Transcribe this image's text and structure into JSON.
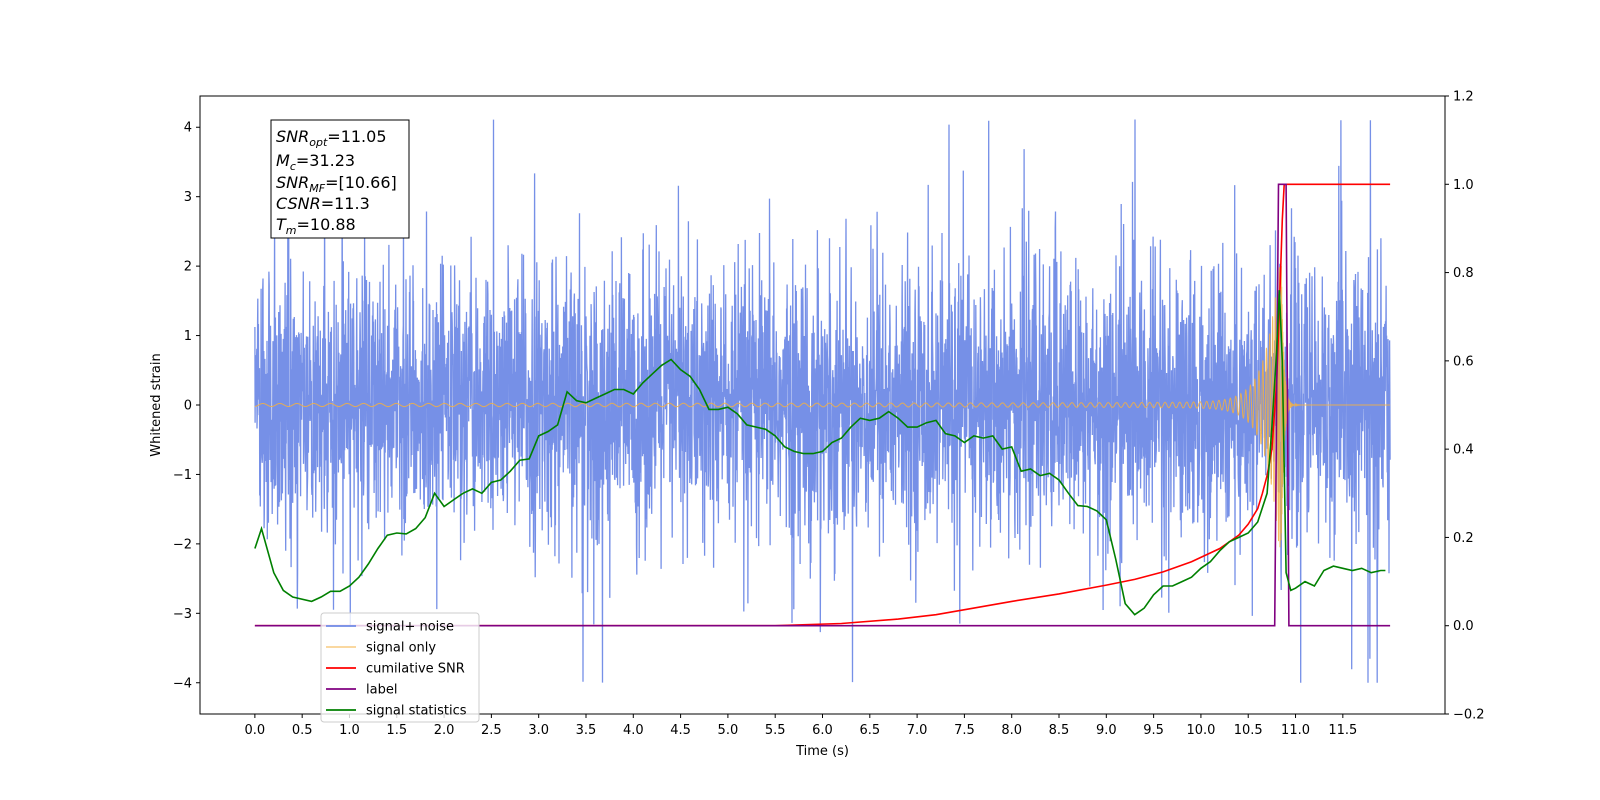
{
  "chart_data": {
    "type": "line",
    "xlabel": "Time (s)",
    "ylabel": "Whitened strain",
    "xlim": [
      -0.58,
      12.58
    ],
    "ylim": [
      -4.45,
      4.45
    ],
    "y2lim": [
      -0.2,
      1.2
    ],
    "x_ticks": [
      0.0,
      0.5,
      1.0,
      1.5,
      2.0,
      2.5,
      3.0,
      3.5,
      4.0,
      4.5,
      5.0,
      5.5,
      6.0,
      6.5,
      7.0,
      7.5,
      8.0,
      8.5,
      9.0,
      9.5,
      10.0,
      10.5,
      11.0,
      11.5
    ],
    "x_tick_labels": [
      "0.0",
      "0.5",
      "1.0",
      "1.5",
      "2.0",
      "2.5",
      "3.0",
      "3.5",
      "4.0",
      "4.5",
      "5.0",
      "5.5",
      "6.0",
      "6.5",
      "7.0",
      "7.5",
      "8.0",
      "8.5",
      "9.0",
      "9.5",
      "10.0",
      "10.5",
      "11.0",
      "11.5"
    ],
    "y_ticks": [
      4,
      3,
      2,
      1,
      0,
      -1,
      -2,
      -3,
      -4
    ],
    "y_tick_labels": [
      "4",
      "3",
      "2",
      "1",
      "0",
      "−1",
      "−2",
      "−3",
      "−4"
    ],
    "y2_ticks": [
      1.2,
      1.0,
      0.8,
      0.6,
      0.4,
      0.2,
      0.0,
      -0.2
    ],
    "y2_tick_labels": [
      "1.2",
      "1.0",
      "0.8",
      "0.6",
      "0.4",
      "0.2",
      "0.0",
      "−0.2"
    ],
    "info_box": [
      "SNR_opt=11.05",
      "M_c=31.23",
      "SNR_MF=[10.66]",
      "CSNR=11.3",
      "T_m=10.88"
    ],
    "colors": {
      "noise": "#6f8ae6",
      "signal": "#f5b041",
      "csnr": "#ff0000",
      "label": "#800080",
      "stats": "#008000"
    },
    "series": [
      {
        "name": "signal+ noise",
        "axis": "left",
        "style": "noisy band approx ±1.5 std, spikes to about ±4",
        "x_range": [
          0.0,
          12.0
        ]
      },
      {
        "name": "signal only",
        "axis": "left",
        "style": "chirp, amplitude growing to about 2.4 at merger near 10.85 s",
        "x_range": [
          0.0,
          12.0
        ]
      },
      {
        "name": "cumilative SNR",
        "axis": "right",
        "x": [
          0.0,
          5.5,
          6.2,
          6.8,
          7.2,
          7.6,
          8.0,
          8.5,
          9.0,
          9.3,
          9.6,
          9.9,
          10.2,
          10.4,
          10.5,
          10.6,
          10.65,
          10.7,
          10.75,
          10.8,
          10.83,
          10.86,
          10.88,
          12.0
        ],
        "values": [
          0.0,
          0.0,
          0.005,
          0.015,
          0.025,
          0.04,
          0.055,
          0.072,
          0.092,
          0.105,
          0.122,
          0.145,
          0.175,
          0.205,
          0.23,
          0.265,
          0.3,
          0.34,
          0.4,
          0.55,
          0.72,
          0.92,
          1.0,
          1.0
        ]
      },
      {
        "name": "label",
        "axis": "right",
        "x": [
          0.0,
          10.78,
          10.82,
          10.9,
          10.93,
          12.0
        ],
        "values": [
          0.0,
          0.0,
          1.0,
          1.0,
          0.0,
          0.0
        ]
      },
      {
        "name": "signal statistics",
        "axis": "right",
        "x": [
          0.0,
          0.07,
          0.2,
          0.3,
          0.4,
          0.6,
          0.7,
          0.8,
          0.9,
          1.0,
          1.1,
          1.2,
          1.3,
          1.4,
          1.5,
          1.6,
          1.7,
          1.8,
          1.9,
          2.0,
          2.1,
          2.2,
          2.3,
          2.4,
          2.5,
          2.6,
          2.7,
          2.8,
          2.9,
          3.0,
          3.1,
          3.2,
          3.3,
          3.4,
          3.5,
          3.6,
          3.7,
          3.8,
          3.9,
          4.0,
          4.1,
          4.2,
          4.3,
          4.4,
          4.5,
          4.6,
          4.7,
          4.8,
          4.9,
          5.0,
          5.1,
          5.2,
          5.3,
          5.4,
          5.5,
          5.6,
          5.7,
          5.8,
          5.9,
          6.0,
          6.1,
          6.2,
          6.3,
          6.4,
          6.5,
          6.6,
          6.7,
          6.8,
          6.9,
          7.0,
          7.1,
          7.2,
          7.3,
          7.4,
          7.5,
          7.6,
          7.7,
          7.8,
          7.9,
          8.0,
          8.1,
          8.2,
          8.3,
          8.4,
          8.5,
          8.6,
          8.7,
          8.8,
          8.9,
          9.0,
          9.1,
          9.2,
          9.3,
          9.4,
          9.5,
          9.6,
          9.7,
          9.8,
          9.9,
          10.0,
          10.1,
          10.2,
          10.3,
          10.4,
          10.5,
          10.6,
          10.7,
          10.75,
          10.8,
          10.83,
          10.86,
          10.9,
          10.95,
          11.0,
          11.1,
          11.2,
          11.3,
          11.4,
          11.5,
          11.6,
          11.7,
          11.8,
          11.9,
          11.95
        ],
        "values": [
          0.175,
          0.22,
          0.12,
          0.08,
          0.065,
          0.055,
          0.065,
          0.078,
          0.078,
          0.09,
          0.11,
          0.14,
          0.175,
          0.205,
          0.21,
          0.208,
          0.22,
          0.245,
          0.3,
          0.27,
          0.285,
          0.3,
          0.31,
          0.3,
          0.325,
          0.33,
          0.35,
          0.375,
          0.378,
          0.43,
          0.44,
          0.455,
          0.53,
          0.51,
          0.505,
          0.515,
          0.525,
          0.535,
          0.535,
          0.525,
          0.55,
          0.57,
          0.59,
          0.603,
          0.58,
          0.565,
          0.535,
          0.49,
          0.49,
          0.495,
          0.48,
          0.455,
          0.45,
          0.445,
          0.43,
          0.405,
          0.395,
          0.39,
          0.39,
          0.395,
          0.415,
          0.425,
          0.45,
          0.47,
          0.465,
          0.47,
          0.485,
          0.47,
          0.45,
          0.45,
          0.46,
          0.465,
          0.435,
          0.43,
          0.415,
          0.43,
          0.425,
          0.43,
          0.4,
          0.405,
          0.35,
          0.355,
          0.34,
          0.345,
          0.33,
          0.3,
          0.272,
          0.27,
          0.26,
          0.24,
          0.15,
          0.05,
          0.025,
          0.04,
          0.07,
          0.09,
          0.09,
          0.1,
          0.11,
          0.13,
          0.145,
          0.17,
          0.19,
          0.2,
          0.21,
          0.235,
          0.3,
          0.45,
          0.62,
          0.76,
          0.6,
          0.12,
          0.08,
          0.085,
          0.1,
          0.09,
          0.125,
          0.135,
          0.13,
          0.125,
          0.13,
          0.12,
          0.125,
          0.125
        ]
      }
    ],
    "legend": {
      "placement": "lower-left",
      "entries": [
        "signal+ noise",
        "signal only",
        "cumilative SNR",
        "label",
        "signal statistics"
      ],
      "obscured_entry": "signal only"
    },
    "grid": false
  }
}
